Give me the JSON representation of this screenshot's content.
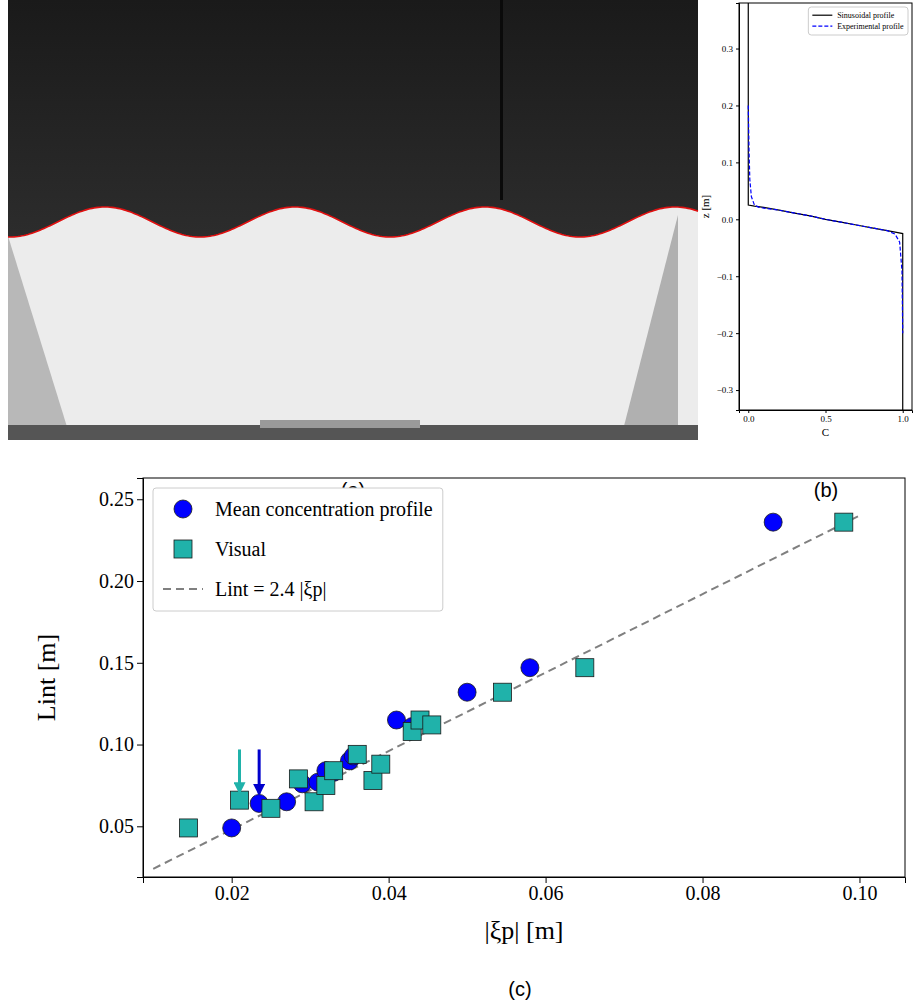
{
  "image": {
    "caption": "(a)"
  },
  "chart_data": [
    {
      "type": "line",
      "caption": "(b)",
      "x_label": "C",
      "y_label": "z [m]",
      "xlim": [
        -0.06,
        1.06
      ],
      "ylim": [
        -0.335,
        0.38
      ],
      "xticks": [
        {
          "value": 0,
          "label": "0.0"
        },
        {
          "value": 0.5,
          "label": "0.5"
        },
        {
          "value": 1,
          "label": "1.0"
        }
      ],
      "yticks": [
        {
          "value": -0.3,
          "label": "−0.3"
        },
        {
          "value": -0.2,
          "label": "−0.2"
        },
        {
          "value": -0.1,
          "label": "−0.1"
        },
        {
          "value": 0,
          "label": "0.0"
        },
        0.1,
        0.2,
        0.3
      ],
      "legend": "upper right",
      "grid": false,
      "series": [
        {
          "name": "Sinusoidal profile",
          "type": "line",
          "color": "#000000",
          "line_style": "solid",
          "x": [
            0,
            0,
            0.04,
            0.1,
            0.2,
            0.3,
            0.4,
            0.5,
            0.6,
            0.7,
            0.8,
            0.9,
            0.96,
            1,
            1
          ],
          "values": [
            0.38,
            0.025,
            0.023,
            0.021,
            0.016,
            0.011,
            0.006,
            0,
            -0.005,
            -0.01,
            -0.015,
            -0.02,
            -0.023,
            -0.025,
            -0.335
          ]
        },
        {
          "name": "Experimental profile",
          "type": "line",
          "color": "#0000ff",
          "line_style": "dashed",
          "x": [
            0,
            0.005,
            0.01,
            0.02,
            0.04,
            0.07,
            0.12,
            0.2,
            0.3,
            0.4,
            0.5,
            0.6,
            0.7,
            0.8,
            0.9,
            0.95,
            0.98,
            0.995,
            1
          ],
          "values": [
            0.2,
            0.12,
            0.07,
            0.04,
            0.025,
            0.021,
            0.019,
            0.016,
            0.011,
            0.006,
            0,
            -0.005,
            -0.01,
            -0.015,
            -0.02,
            -0.026,
            -0.04,
            -0.09,
            -0.2
          ]
        }
      ]
    },
    {
      "type": "scatter",
      "caption": "(c)",
      "x_label": "|ξp| [m]",
      "y_label": "Lint [m]",
      "xlim": [
        0.0087,
        0.1058
      ],
      "ylim": [
        0.019,
        0.263
      ],
      "xticks": [
        0.02,
        0.04,
        0.06,
        0.08,
        {
          "value": 0.1,
          "label": "0.10"
        }
      ],
      "yticks": [
        0.05,
        {
          "value": 0.1,
          "label": "0.10"
        },
        0.15,
        {
          "value": 0.2,
          "label": "0.20"
        },
        0.25
      ],
      "legend": "upper left",
      "grid": false,
      "series": [
        {
          "name": "Mean concentration profile",
          "type": "scatter",
          "marker": "circle",
          "color": "#0000ff",
          "x": [
            0.02,
            0.0235,
            0.027,
            0.029,
            0.031,
            0.032,
            0.033,
            0.035,
            0.0355,
            0.041,
            0.043,
            0.05,
            0.058,
            0.089
          ],
          "values": [
            0.049,
            0.064,
            0.065,
            0.076,
            0.077,
            0.084,
            0.083,
            0.09,
            0.093,
            0.115,
            0.111,
            0.132,
            0.147,
            0.236
          ]
        },
        {
          "name": "Visual",
          "type": "scatter",
          "marker": "square",
          "color": "#20b2aa",
          "x": [
            0.0145,
            0.021,
            0.025,
            0.0285,
            0.0305,
            0.032,
            0.033,
            0.036,
            0.038,
            0.039,
            0.043,
            0.044,
            0.0455,
            0.0545,
            0.065,
            0.098
          ],
          "values": [
            0.049,
            0.066,
            0.061,
            0.079,
            0.065,
            0.075,
            0.084,
            0.094,
            0.078,
            0.088,
            0.108,
            0.115,
            0.112,
            0.132,
            0.147,
            0.236
          ]
        },
        {
          "name": "Lint = 2.4 |ξp|",
          "type": "line",
          "line_style": "dashed",
          "color": "#808080",
          "x": [
            0.01,
            0.1
          ],
          "values": [
            0.024,
            0.24
          ]
        }
      ],
      "arrows": [
        {
          "x": 0.021,
          "y_start": 0.097,
          "y_end": 0.071,
          "color": "#20b2aa"
        },
        {
          "x": 0.0235,
          "y_start": 0.097,
          "y_end": 0.07,
          "color": "#0000cc"
        }
      ]
    }
  ]
}
